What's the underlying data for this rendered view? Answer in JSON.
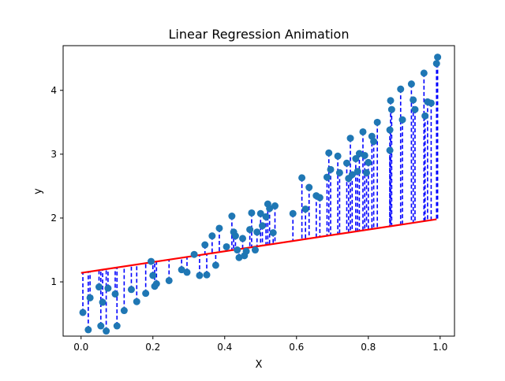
{
  "chart_data": {
    "type": "scatter",
    "title": "Linear Regression Animation",
    "xlabel": "X",
    "ylabel": "y",
    "xlim": [
      -0.05,
      1.04
    ],
    "ylim": [
      0.15,
      4.7
    ],
    "xticks": [
      0.0,
      0.2,
      0.4,
      0.6,
      0.8,
      1.0
    ],
    "xtick_labels": [
      "0.0",
      "0.2",
      "0.4",
      "0.6",
      "0.8",
      "1.0"
    ],
    "yticks": [
      1,
      2,
      3,
      4
    ],
    "ytick_labels": [
      "1",
      "2",
      "3",
      "4"
    ],
    "grid": false,
    "colors": {
      "points": "#1f77b4",
      "fit_line": "#ff0000",
      "residuals": "#0000ff"
    },
    "fit_line": {
      "x": [
        0.0,
        0.99
      ],
      "y": [
        1.14,
        1.98
      ]
    },
    "points": {
      "x": [
        0.005,
        0.02,
        0.025,
        0.05,
        0.055,
        0.06,
        0.07,
        0.075,
        0.095,
        0.1,
        0.12,
        0.14,
        0.155,
        0.18,
        0.195,
        0.2,
        0.205,
        0.21,
        0.245,
        0.28,
        0.295,
        0.315,
        0.33,
        0.345,
        0.35,
        0.365,
        0.375,
        0.385,
        0.405,
        0.42,
        0.425,
        0.43,
        0.435,
        0.44,
        0.45,
        0.455,
        0.46,
        0.47,
        0.475,
        0.485,
        0.49,
        0.5,
        0.505,
        0.515,
        0.52,
        0.525,
        0.535,
        0.54,
        0.59,
        0.615,
        0.625,
        0.635,
        0.655,
        0.665,
        0.685,
        0.69,
        0.695,
        0.715,
        0.72,
        0.74,
        0.745,
        0.75,
        0.755,
        0.765,
        0.77,
        0.775,
        0.785,
        0.79,
        0.795,
        0.8,
        0.81,
        0.815,
        0.825,
        0.86,
        0.86,
        0.862,
        0.865,
        0.89,
        0.895,
        0.92,
        0.925,
        0.93,
        0.955,
        0.958,
        0.965,
        0.975,
        0.99,
        0.993
      ],
      "y": [
        0.52,
        0.25,
        0.75,
        0.92,
        0.31,
        0.68,
        0.23,
        0.9,
        0.81,
        0.31,
        0.55,
        0.88,
        0.69,
        0.82,
        1.32,
        1.1,
        0.93,
        0.97,
        1.02,
        1.19,
        1.15,
        1.43,
        1.1,
        1.58,
        1.11,
        1.72,
        1.26,
        1.84,
        1.55,
        2.03,
        1.78,
        1.72,
        1.5,
        1.38,
        1.68,
        1.41,
        1.48,
        1.82,
        2.08,
        1.5,
        1.78,
        2.07,
        1.88,
        2.02,
        2.22,
        2.15,
        1.77,
        2.19,
        2.07,
        2.63,
        2.14,
        2.48,
        2.35,
        2.32,
        2.64,
        3.02,
        2.76,
        2.97,
        2.71,
        2.86,
        2.62,
        3.25,
        2.68,
        2.93,
        2.73,
        3.01,
        3.35,
        2.98,
        2.71,
        2.87,
        3.28,
        3.2,
        3.5,
        3.06,
        3.38,
        3.84,
        3.7,
        4.02,
        3.54,
        4.1,
        3.85,
        3.7,
        4.27,
        3.6,
        3.82,
        3.8,
        4.42,
        4.52
      ]
    }
  }
}
